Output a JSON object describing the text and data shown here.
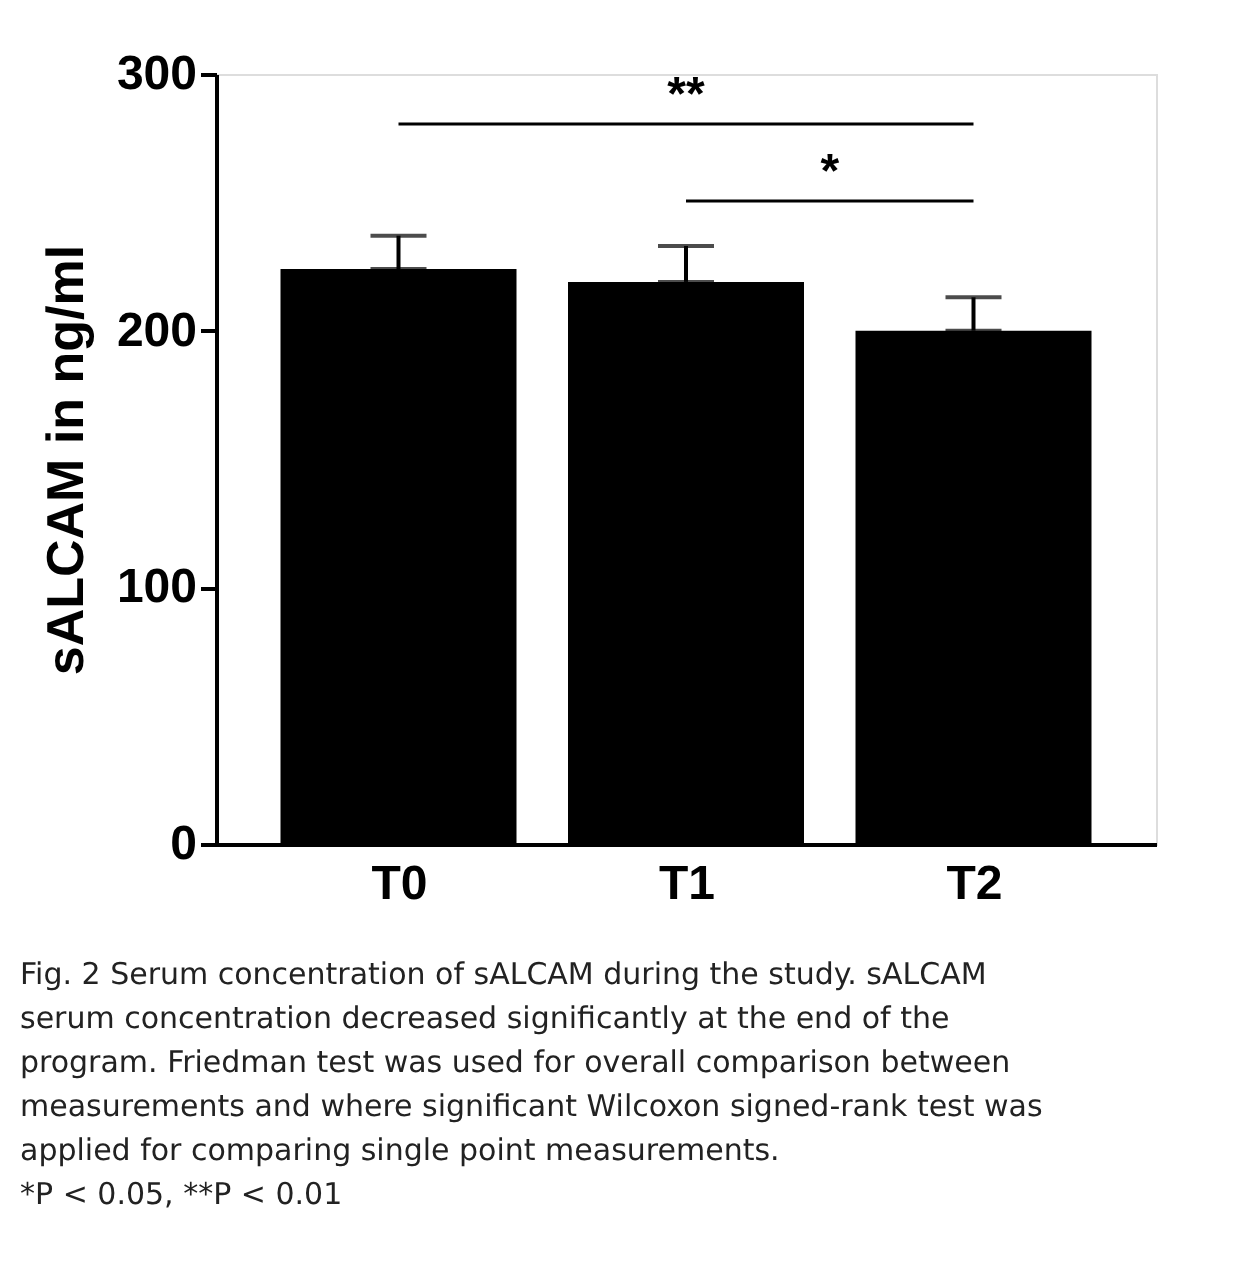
{
  "chart_data": {
    "type": "bar",
    "ylabel": "sALCAM in ng/ml",
    "categories": [
      "T0",
      "T1",
      "T2"
    ],
    "values": [
      224,
      219,
      200
    ],
    "errors": [
      [
        224,
        237
      ],
      [
        219,
        233
      ],
      [
        200,
        213
      ]
    ],
    "color": "#000000",
    "ylim": [
      0,
      300
    ],
    "yticks": [
      0,
      100,
      200,
      300
    ],
    "grid": false,
    "annotations": [
      "**",
      "*",
      "Fig. 2 Serum concentration of sALCAM during the study. sALCAM serum concentration decreased significantly at the end of the program. Friedman test was used for overall comparison between measurements and where significant Wilcoxon signed-rank test was applied for comparing single point measurements.",
      "*P < 0.05, **P < 0.01"
    ]
  }
}
